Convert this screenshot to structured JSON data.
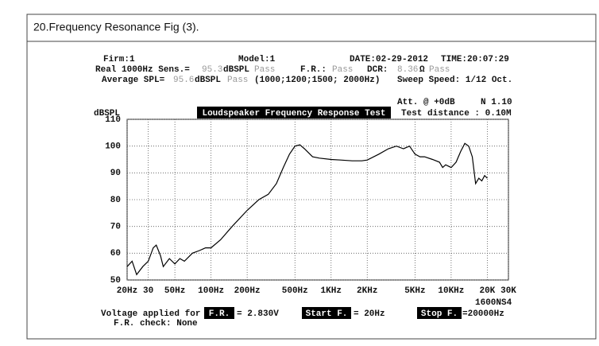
{
  "document": {
    "heading": "20.Frequency   Resonance    Fig (3).",
    "firm": "Firm:1",
    "model": "Model:1",
    "date": "DATE:02-29-2012",
    "time": "TIME:20:07:29",
    "real": "Real  1000Hz Sens.=",
    "sens_value": "95.3",
    "sens_unit": "dBSPL",
    "sens_pass": "Pass",
    "fr_label": "F.R.:",
    "fr_pass": "Pass",
    "dcr_label": "DCR:",
    "dcr_value": "8.36",
    "dcr_unit": "Ω",
    "dcr_pass": "Pass",
    "avg_label": "Average SPL=",
    "avg_value": "95.6",
    "avg_unit": "dBSPL",
    "avg_pass": "Pass",
    "avg_freqs": "(1000;1200;1500; 2000Hz)",
    "sweep": "Sweep Speed: 1/12 Oct.",
    "att": "Att. @  +0dB",
    "version": "N 1.10",
    "distance": "Test distance : 0.10M",
    "model_code": "1600NS4",
    "voltage_label": "Voltage applied for",
    "voltage_key": "F.R.",
    "voltage_value": "= 2.830V",
    "start_key": "Start F.",
    "start_value": "=   20Hz",
    "stop_key": "Stop F.",
    "stop_value": "=20000Hz",
    "check": "F.R. check:  None"
  },
  "chart_data": {
    "type": "line",
    "title": "Loudspeaker Frequency Response Test",
    "y_label": "dBSPL",
    "log_x": true,
    "grid": true,
    "xlim": [
      20,
      30000
    ],
    "xticks": [
      {
        "value": 20,
        "label": "20Hz"
      },
      30,
      {
        "value": 50,
        "label": "50Hz"
      },
      {
        "value": 100,
        "label": "100Hz"
      },
      {
        "value": 200,
        "label": "200Hz"
      },
      {
        "value": 500,
        "label": "500Hz"
      },
      {
        "value": 1000,
        "label": "1KHz"
      },
      {
        "value": 2000,
        "label": "2KHz"
      },
      {
        "value": 5000,
        "label": "5KHz"
      },
      {
        "value": 10000,
        "label": "10KHz"
      },
      {
        "value": 20000,
        "label": "20K"
      },
      {
        "value": 30000,
        "label": "30K"
      }
    ],
    "ylim": [
      50,
      110
    ],
    "yticks": [
      50,
      60,
      70,
      80,
      90,
      100,
      110
    ],
    "color": "#000000",
    "x": [
      20,
      22,
      24,
      27,
      30,
      33,
      35,
      38,
      40,
      45,
      50,
      55,
      60,
      70,
      80,
      90,
      100,
      120,
      150,
      200,
      250,
      300,
      350,
      400,
      450,
      500,
      550,
      600,
      700,
      800,
      1000,
      1200,
      1500,
      1800,
      2000,
      2500,
      3000,
      3500,
      4000,
      4500,
      5000,
      5500,
      6000,
      7000,
      8000,
      8500,
      9000,
      10000,
      11000,
      12000,
      13000,
      14000,
      15000,
      16000,
      17000,
      18000,
      19000,
      20000
    ],
    "values": [
      55,
      57,
      52,
      55,
      57,
      62,
      63,
      59,
      55,
      58,
      56,
      58,
      57,
      60,
      61,
      62,
      62,
      65,
      70,
      76,
      80,
      82,
      86,
      92,
      97,
      100,
      100.5,
      99,
      96,
      95.5,
      95,
      94.8,
      94.5,
      94.5,
      94.8,
      97,
      99,
      100,
      99,
      100,
      97,
      96,
      96,
      95,
      94,
      92,
      93,
      92,
      94,
      98,
      101,
      100,
      96,
      86,
      88,
      87,
      89,
      88
    ]
  }
}
